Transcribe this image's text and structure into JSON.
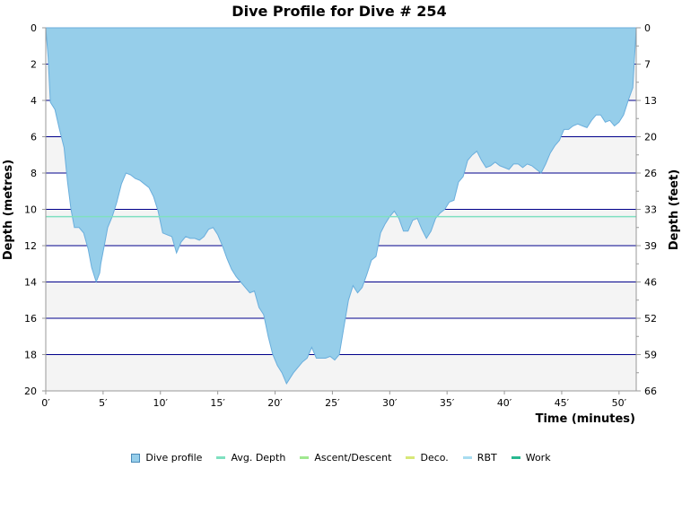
{
  "chart_data": {
    "type": "area",
    "title": "Dive Profile for Dive # 254",
    "xlabel": "Time (minutes)",
    "ylabel_left": "Depth (metres)",
    "ylabel_right": "Depth (feet)",
    "xlim": [
      0,
      51.5
    ],
    "ylim": [
      0,
      20
    ],
    "y_inverted": true,
    "x_tick_labels": [
      "0′",
      "5′",
      "10′",
      "15′",
      "20′",
      "25′",
      "30′",
      "35′",
      "40′",
      "45′",
      "50′"
    ],
    "x_ticks": [
      0,
      5,
      10,
      15,
      20,
      25,
      30,
      35,
      40,
      45,
      50
    ],
    "y_left_ticks": [
      0,
      2,
      4,
      6,
      8,
      10,
      12,
      14,
      16,
      18,
      20
    ],
    "y_left_tick_labels": [
      "0",
      "2",
      "4",
      "6",
      "8",
      "10",
      "12",
      "14",
      "16",
      "18",
      "20"
    ],
    "y_right_tick_labels": [
      "0",
      "7",
      "13",
      "20",
      "26",
      "33",
      "39",
      "46",
      "52",
      "59",
      "66"
    ],
    "avg_depth": 10.4,
    "colors": {
      "profile_fill": "#96ceea",
      "profile_line": "#6aaedc",
      "gridline": "#00008b",
      "band": "#f4f4f4",
      "avg_depth": "#7fe0c0"
    },
    "series": [
      {
        "name": "Dive profile",
        "x": [
          0,
          0.2,
          0.4,
          0.8,
          1.2,
          1.6,
          1.9,
          2.2,
          2.5,
          2.9,
          3.3,
          3.7,
          4.0,
          4.4,
          4.7,
          4.8,
          5.1,
          5.4,
          5.8,
          6.2,
          6.6,
          7.0,
          7.4,
          7.8,
          8.2,
          8.6,
          9.0,
          9.4,
          9.8,
          10.2,
          10.6,
          11.0,
          11.4,
          11.8,
          12.2,
          12.6,
          13.0,
          13.4,
          13.8,
          14.2,
          14.6,
          15.0,
          15.4,
          15.8,
          16.2,
          16.6,
          17.0,
          17.4,
          17.8,
          18.2,
          18.6,
          19.0,
          19.4,
          19.8,
          20.2,
          20.6,
          21.0,
          21.2,
          21.6,
          22.0,
          22.4,
          22.8,
          23.2,
          23.6,
          24.0,
          24.4,
          24.8,
          25.2,
          25.6,
          26.0,
          26.4,
          26.8,
          27.2,
          27.6,
          28.0,
          28.4,
          28.8,
          29.2,
          29.6,
          30.0,
          30.4,
          30.8,
          31.2,
          31.6,
          32.0,
          32.4,
          32.8,
          33.2,
          33.6,
          34.0,
          34.4,
          34.8,
          35.2,
          35.6,
          36.0,
          36.4,
          36.8,
          37.2,
          37.6,
          38.0,
          38.4,
          38.8,
          39.2,
          39.6,
          40.0,
          40.4,
          40.8,
          41.2,
          41.6,
          42.0,
          42.4,
          42.8,
          43.2,
          43.6,
          44.0,
          44.4,
          44.8,
          45.2,
          45.6,
          46.0,
          46.4,
          46.8,
          47.2,
          47.6,
          48.0,
          48.4,
          48.8,
          49.2,
          49.6,
          50.0,
          50.4,
          50.8,
          51.2,
          51.5
        ],
        "y": [
          0,
          1.6,
          4.1,
          4.5,
          5.6,
          6.6,
          8.5,
          10.0,
          11.0,
          11.0,
          11.3,
          12.2,
          13.2,
          14.0,
          13.5,
          13.0,
          12.0,
          11.0,
          10.4,
          9.6,
          8.6,
          8.0,
          8.1,
          8.3,
          8.4,
          8.6,
          8.8,
          9.3,
          10.1,
          11.3,
          11.4,
          11.5,
          12.4,
          11.8,
          11.5,
          11.6,
          11.6,
          11.7,
          11.5,
          11.1,
          11.0,
          11.4,
          12.0,
          12.7,
          13.3,
          13.7,
          14.0,
          14.3,
          14.6,
          14.5,
          15.4,
          15.8,
          17.0,
          18.0,
          18.6,
          19.0,
          19.6,
          19.4,
          19.0,
          18.7,
          18.4,
          18.2,
          17.6,
          18.2,
          18.2,
          18.2,
          18.1,
          18.3,
          18.0,
          16.5,
          15.0,
          14.2,
          14.6,
          14.3,
          13.6,
          12.8,
          12.6,
          11.3,
          10.8,
          10.4,
          10.1,
          10.5,
          11.2,
          11.2,
          10.6,
          10.5,
          11.1,
          11.6,
          11.2,
          10.5,
          10.2,
          10.0,
          9.6,
          9.5,
          8.5,
          8.2,
          7.3,
          7.0,
          6.8,
          7.3,
          7.7,
          7.6,
          7.4,
          7.6,
          7.7,
          7.8,
          7.5,
          7.5,
          7.7,
          7.5,
          7.6,
          7.8,
          8.0,
          7.5,
          6.9,
          6.5,
          6.2,
          5.6,
          5.6,
          5.4,
          5.3,
          5.4,
          5.5,
          5.1,
          4.8,
          4.8,
          5.2,
          5.1,
          5.4,
          5.2,
          4.8,
          4.0,
          3.3,
          0
        ]
      },
      {
        "name": "Avg. Depth",
        "color": "#7fe0c0"
      },
      {
        "name": "Ascent/Descent",
        "color": "#a0e890"
      },
      {
        "name": "Deco.",
        "color": "#d8e878"
      },
      {
        "name": "RBT",
        "color": "#a8dcf0"
      },
      {
        "name": "Work",
        "color": "#28b890"
      }
    ]
  }
}
